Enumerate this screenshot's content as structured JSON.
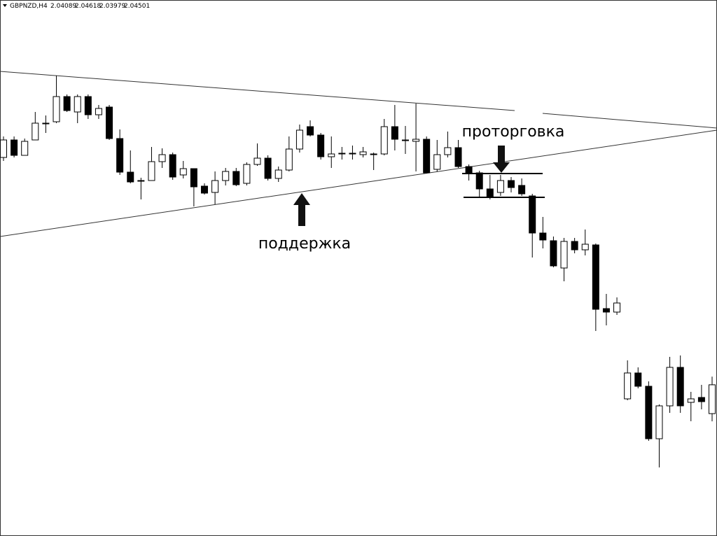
{
  "chart_data": {
    "type": "candlestick",
    "title": "GBPNZD,H4",
    "header_ohlc": [
      2.04089,
      2.04618,
      2.03979,
      2.04501
    ],
    "annotations": [
      "поддержка",
      "проторговка"
    ],
    "bull_color": "#ffffff",
    "bear_color": "#000000",
    "ylim": [
      2.0234,
      2.1
    ],
    "open": [
      2.0775,
      2.08,
      2.0778,
      2.08,
      2.0824,
      2.0826,
      2.0862,
      2.084,
      2.0862,
      2.0836,
      2.0847,
      2.0802,
      2.0754,
      2.0742,
      2.0742,
      2.0769,
      2.0779,
      2.075,
      2.0759,
      2.0734,
      2.0725,
      2.0742,
      2.0755,
      2.0738,
      2.0765,
      2.0774,
      2.0745,
      2.0757,
      2.0787,
      2.0819,
      2.0807,
      2.0776,
      2.0781,
      2.0781,
      2.0779,
      2.078,
      2.078,
      2.0819,
      2.08,
      2.0798,
      2.0801,
      2.0758,
      2.0779,
      2.0789,
      2.0762,
      2.0753,
      2.073,
      2.0725,
      2.0742,
      2.0735,
      2.072,
      2.0667,
      2.0656,
      2.0617,
      2.0655,
      2.0643,
      2.065,
      2.0559,
      2.0554,
      2.043,
      2.0467,
      2.0448,
      2.0373,
      2.042,
      2.0475,
      2.0425,
      2.0432,
      2.04089
    ],
    "high": [
      2.0805,
      2.0805,
      2.0802,
      2.084,
      2.0835,
      2.0892,
      2.0865,
      2.0865,
      2.0865,
      2.085,
      2.085,
      2.0815,
      2.0785,
      2.0746,
      2.079,
      2.0788,
      2.0782,
      2.077,
      2.0759,
      2.0738,
      2.0755,
      2.076,
      2.076,
      2.0768,
      2.0795,
      2.0778,
      2.0762,
      2.0805,
      2.0822,
      2.0828,
      2.081,
      2.0805,
      2.079,
      2.0792,
      2.079,
      2.0782,
      2.083,
      2.085,
      2.082,
      2.0852,
      2.0805,
      2.08,
      2.0812,
      2.08,
      2.0765,
      2.0756,
      2.075,
      2.075,
      2.0747,
      2.0745,
      2.0723,
      2.069,
      2.0662,
      2.066,
      2.066,
      2.0672,
      2.0652,
      2.058,
      2.0575,
      2.0485,
      2.0475,
      2.0455,
      2.0422,
      2.049,
      2.0492,
      2.044,
      2.045,
      2.04618
    ],
    "low": [
      2.077,
      2.0775,
      2.0778,
      2.08,
      2.081,
      2.0824,
      2.084,
      2.0824,
      2.083,
      2.083,
      2.08,
      2.075,
      2.0738,
      2.0715,
      2.0742,
      2.076,
      2.0743,
      2.0745,
      2.0705,
      2.0722,
      2.0708,
      2.0735,
      2.0734,
      2.0735,
      2.0763,
      2.0742,
      2.074,
      2.0755,
      2.0782,
      2.0805,
      2.0772,
      2.076,
      2.0772,
      2.0772,
      2.0775,
      2.0757,
      2.0778,
      2.0785,
      2.078,
      2.0755,
      2.0752,
      2.0755,
      2.0775,
      2.076,
      2.0742,
      2.0718,
      2.0715,
      2.072,
      2.0725,
      2.072,
      2.0632,
      2.0645,
      2.0618,
      2.0598,
      2.0638,
      2.0635,
      2.0527,
      2.0535,
      2.055,
      2.0428,
      2.0445,
      2.037,
      2.0332,
      2.041,
      2.041,
      2.0398,
      2.0415,
      2.03979
    ],
    "close": [
      2.08,
      2.0778,
      2.0798,
      2.0824,
      2.0824,
      2.0862,
      2.0842,
      2.0862,
      2.0836,
      2.0845,
      2.0802,
      2.0754,
      2.074,
      2.0742,
      2.0769,
      2.0779,
      2.0747,
      2.0759,
      2.0733,
      2.0724,
      2.0742,
      2.0755,
      2.0736,
      2.0765,
      2.0774,
      2.0745,
      2.0757,
      2.0787,
      2.0814,
      2.0807,
      2.0776,
      2.078,
      2.0781,
      2.0781,
      2.0783,
      2.078,
      2.0819,
      2.0801,
      2.08,
      2.0801,
      2.0753,
      2.0779,
      2.0789,
      2.0762,
      2.0753,
      2.073,
      2.0718,
      2.0742,
      2.0732,
      2.0723,
      2.0667,
      2.0657,
      2.062,
      2.0655,
      2.0643,
      2.0651,
      2.0558,
      2.0554,
      2.0567,
      2.0467,
      2.0448,
      2.0373,
      2.042,
      2.0475,
      2.042,
      2.043,
      2.0426,
      2.04501
    ]
  }
}
